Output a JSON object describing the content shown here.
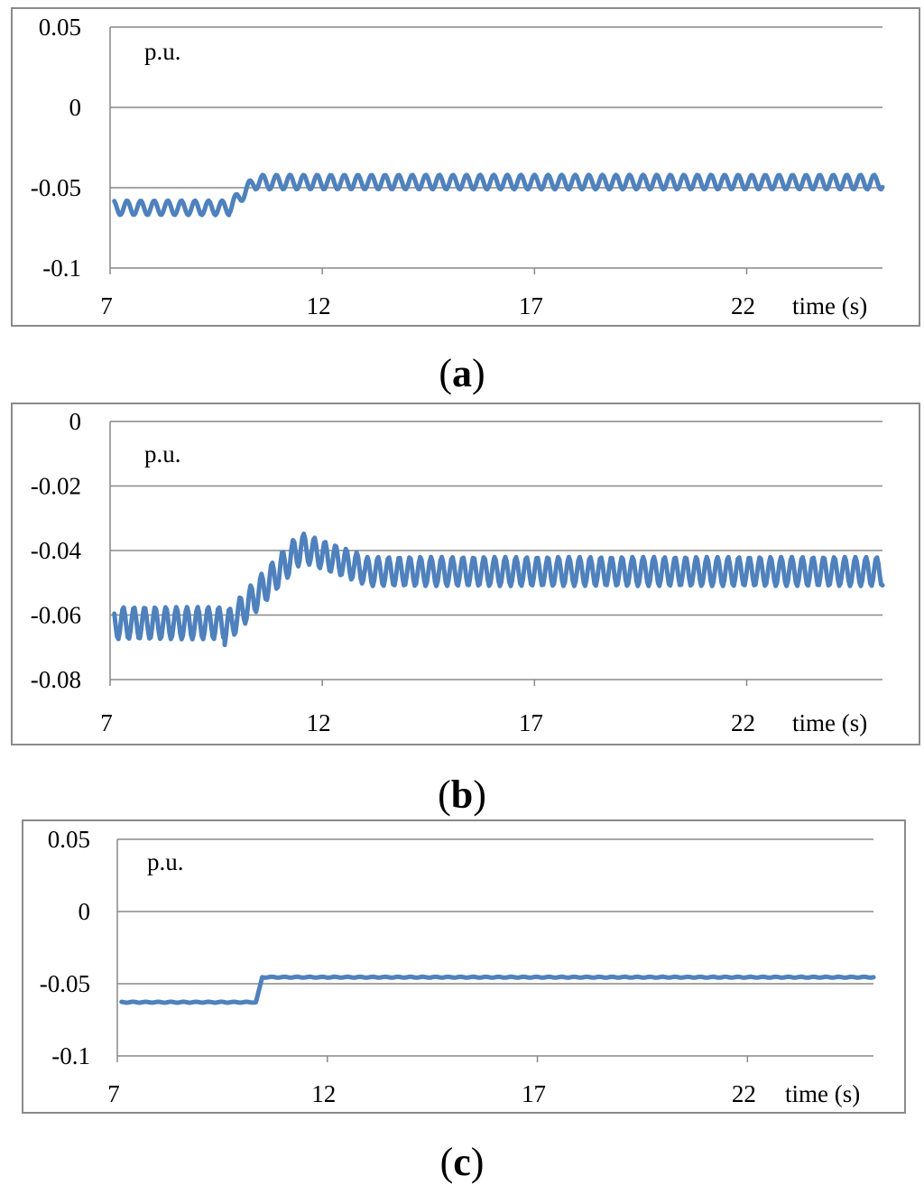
{
  "chart_data": [
    {
      "type": "line",
      "panel_label": "a",
      "unit_label": "p.u.",
      "xlabel": "time (s)",
      "xlim": [
        7,
        25.2
      ],
      "ylim": [
        -0.1,
        0.05
      ],
      "x_ticks": [
        7,
        12,
        17,
        22
      ],
      "x_tick_labels": [
        "7",
        "12",
        "17",
        "22"
      ],
      "y_ticks": [
        0.05,
        0,
        -0.05,
        -0.1
      ],
      "y_tick_labels": [
        "0.05",
        "0",
        "-0.05",
        "-0.1"
      ],
      "grid": true,
      "line_color": "#4f81bd",
      "series": [
        {
          "segments": [
            {
              "x_start": 7.1,
              "x_end": 9.8,
              "y_mean": -0.0625,
              "ripple_amp": 0.0045,
              "period": 0.32
            },
            {
              "x_start": 9.8,
              "x_end": 10.4,
              "y_start": -0.0625,
              "y_end": -0.0465,
              "ripple_amp": 0.004,
              "period": 0.32
            },
            {
              "x_start": 10.4,
              "x_end": 25.2,
              "y_mean": -0.0465,
              "ripple_amp": 0.0045,
              "period": 0.32
            }
          ]
        }
      ]
    },
    {
      "type": "line",
      "panel_label": "b",
      "unit_label": "p.u.",
      "xlabel": "time (s)",
      "xlim": [
        7,
        25.2
      ],
      "ylim": [
        -0.08,
        0
      ],
      "x_ticks": [
        7,
        12,
        17,
        22
      ],
      "x_tick_labels": [
        "7",
        "12",
        "17",
        "22"
      ],
      "y_ticks": [
        0,
        -0.02,
        -0.04,
        -0.06,
        -0.08
      ],
      "y_tick_labels": [
        "0",
        "-0.02",
        "-0.04",
        "-0.06",
        "-0.08"
      ],
      "grid": true,
      "line_color": "#4f81bd",
      "series": [
        {
          "segments": [
            {
              "x_start": 7.1,
              "x_end": 9.7,
              "y_mean": -0.0625,
              "ripple_amp": 0.005,
              "period": 0.25
            },
            {
              "x_start": 9.7,
              "x_end": 11.5,
              "y_start": -0.0645,
              "y_end": -0.039,
              "ripple_amp": 0.005,
              "period": 0.25
            },
            {
              "x_start": 11.5,
              "x_end": 13.0,
              "y_start": -0.039,
              "y_end": -0.046,
              "ripple_amp": 0.0045,
              "period": 0.25
            },
            {
              "x_start": 13.0,
              "x_end": 25.2,
              "y_mean": -0.0465,
              "ripple_amp": 0.0045,
              "period": 0.25
            }
          ]
        }
      ]
    },
    {
      "type": "line",
      "panel_label": "c",
      "unit_label": "p.u.",
      "xlabel": "time (s)",
      "xlim": [
        7,
        25
      ],
      "ylim": [
        -0.1,
        0.05
      ],
      "x_ticks": [
        7,
        12,
        17,
        22
      ],
      "x_tick_labels": [
        "7",
        "12",
        "17",
        "22"
      ],
      "y_ticks": [
        0.05,
        0,
        -0.05,
        -0.1
      ],
      "y_tick_labels": [
        "0.05",
        "0",
        "-0.05",
        "-0.1"
      ],
      "grid": true,
      "line_color": "#4f81bd",
      "series": [
        {
          "segments": [
            {
              "x_start": 7.1,
              "x_end": 10.3,
              "y_mean": -0.0628,
              "ripple_amp": 0.0003,
              "period": 0.3
            },
            {
              "x_start": 10.3,
              "x_end": 10.45,
              "y_start": -0.0628,
              "y_end": -0.0455,
              "ripple_amp": 0,
              "period": 0.3
            },
            {
              "x_start": 10.45,
              "x_end": 25,
              "y_mean": -0.0455,
              "ripple_amp": 0.0003,
              "period": 0.3
            }
          ]
        }
      ]
    }
  ]
}
